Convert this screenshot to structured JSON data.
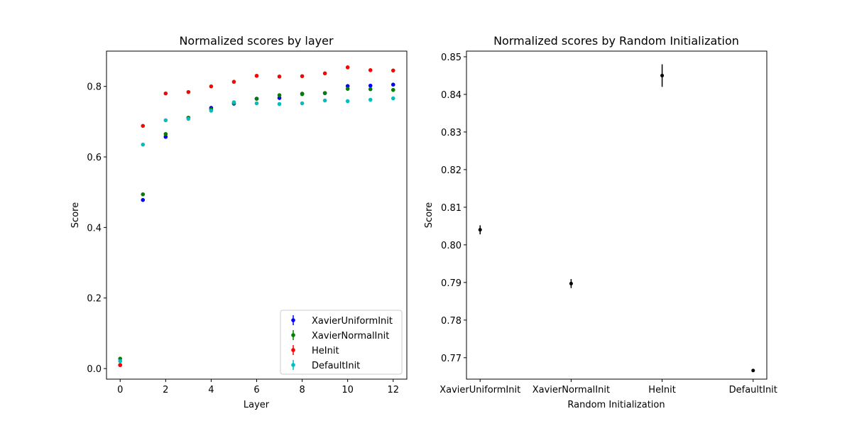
{
  "chart_data": [
    {
      "type": "scatter",
      "title": "Normalized scores by layer",
      "xlabel": "Layer",
      "ylabel": "Score",
      "xlim": [
        -0.6,
        12.6
      ],
      "ylim": [
        -0.03,
        0.9
      ],
      "xticks": [
        0,
        2,
        4,
        6,
        8,
        10,
        12
      ],
      "yticks": [
        0.0,
        0.2,
        0.4,
        0.6,
        0.8
      ],
      "ytick_labels": [
        "0.0",
        "0.2",
        "0.4",
        "0.6",
        "0.8"
      ],
      "legend_position": "lower-right",
      "x": [
        0,
        1,
        2,
        3,
        4,
        5,
        6,
        7,
        8,
        9,
        10,
        11,
        12
      ],
      "series": [
        {
          "name": "XavierUniformInit",
          "color": "#0000ff",
          "values": [
            0.01,
            0.478,
            0.657,
            0.711,
            0.739,
            0.751,
            0.765,
            0.767,
            0.779,
            0.781,
            0.801,
            0.802,
            0.805
          ]
        },
        {
          "name": "XavierNormalInit",
          "color": "#008000",
          "values": [
            0.028,
            0.494,
            0.665,
            0.711,
            0.735,
            0.752,
            0.765,
            0.775,
            0.778,
            0.781,
            0.793,
            0.792,
            0.79
          ]
        },
        {
          "name": "HeInit",
          "color": "#ff0000",
          "values": [
            0.01,
            0.688,
            0.78,
            0.784,
            0.8,
            0.813,
            0.83,
            0.828,
            0.829,
            0.837,
            0.854,
            0.846,
            0.845
          ]
        },
        {
          "name": "DefaultInit",
          "color": "#00bfbf",
          "values": [
            0.021,
            0.635,
            0.704,
            0.708,
            0.731,
            0.755,
            0.752,
            0.75,
            0.752,
            0.76,
            0.758,
            0.762,
            0.766
          ]
        }
      ]
    },
    {
      "type": "scatter",
      "title": "Normalized scores by Random Initialization",
      "xlabel": "Random Initialization",
      "ylabel": "Score",
      "ylim": [
        0.7643,
        0.8515
      ],
      "yticks": [
        0.77,
        0.78,
        0.79,
        0.8,
        0.81,
        0.82,
        0.83,
        0.84,
        0.85
      ],
      "ytick_labels": [
        "0.77",
        "0.78",
        "0.79",
        "0.80",
        "0.81",
        "0.82",
        "0.83",
        "0.84",
        "0.85"
      ],
      "categories": [
        "XavierUniformInit",
        "XavierNormalInit",
        "HeInit",
        "DefaultInit"
      ],
      "color": "#000000",
      "values": [
        0.804,
        0.7897,
        0.845,
        0.7666
      ],
      "errors": [
        0.0012,
        0.0012,
        0.003,
        0.0004
      ]
    }
  ]
}
